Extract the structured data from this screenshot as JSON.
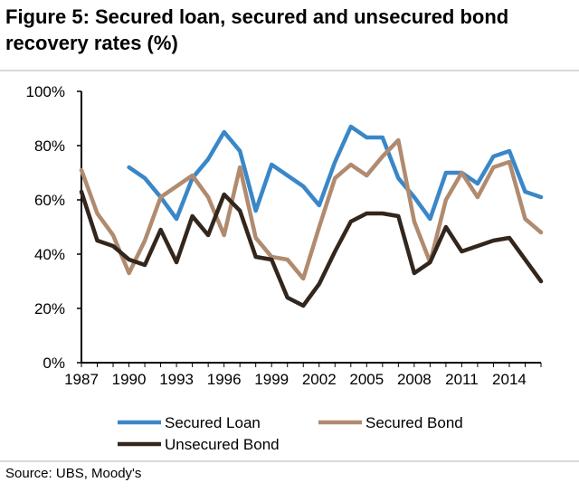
{
  "title": "Figure 5: Secured loan, secured and unsecured bond recovery rates (%)",
  "source": "Source:  UBS, Moody's",
  "chart_data": {
    "type": "line",
    "title": "Figure 5: Secured loan, secured and unsecured bond recovery rates (%)",
    "xlabel": "",
    "ylabel": "",
    "xlim": [
      1987,
      2016
    ],
    "ylim": [
      0,
      100
    ],
    "y_ticks": [
      "0%",
      "20%",
      "40%",
      "60%",
      "80%",
      "100%"
    ],
    "x_ticks": [
      "1987",
      "1990",
      "1993",
      "1996",
      "1999",
      "2002",
      "2005",
      "2008",
      "2011",
      "2014"
    ],
    "grid": false,
    "legend": "bottom",
    "x": [
      1987,
      1988,
      1989,
      1990,
      1991,
      1992,
      1993,
      1994,
      1995,
      1996,
      1997,
      1998,
      1999,
      2000,
      2001,
      2002,
      2003,
      2004,
      2005,
      2006,
      2007,
      2008,
      2009,
      2010,
      2011,
      2012,
      2013,
      2014,
      2015,
      2016
    ],
    "series": [
      {
        "name": "Secured Loan",
        "color": "#3a87c8",
        "values": [
          null,
          null,
          null,
          72,
          68,
          61,
          53,
          68,
          75,
          85,
          78,
          56,
          73,
          69,
          65,
          58,
          74,
          87,
          83,
          83,
          68,
          61,
          53,
          70,
          70,
          66,
          76,
          78,
          63,
          61
        ]
      },
      {
        "name": "Secured Bond",
        "color": "#b08b6f",
        "values": [
          71,
          55,
          47,
          33,
          45,
          61,
          65,
          69,
          61,
          47,
          72,
          46,
          39,
          38,
          31,
          50,
          68,
          73,
          69,
          76,
          82,
          52,
          37,
          60,
          70,
          61,
          72,
          74,
          53,
          48
        ]
      },
      {
        "name": "Unsecured Bond",
        "color": "#33261d",
        "values": [
          63,
          45,
          43,
          38,
          36,
          49,
          37,
          54,
          47,
          62,
          56,
          39,
          38,
          24,
          21,
          29,
          41,
          52,
          55,
          55,
          54,
          33,
          37,
          50,
          41,
          43,
          45,
          46,
          38,
          30
        ]
      }
    ]
  }
}
